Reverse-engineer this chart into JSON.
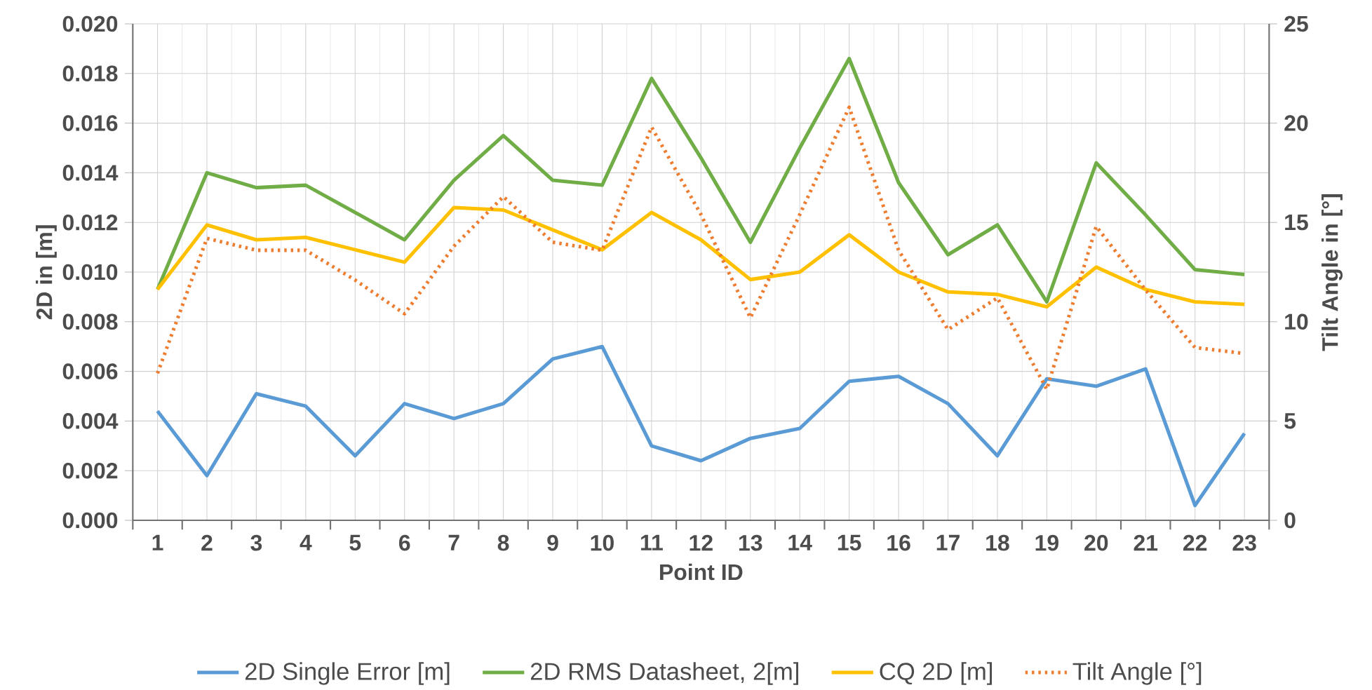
{
  "chart_data": {
    "type": "line",
    "xlabel": "Point ID",
    "ylabel": "2D in [m]",
    "y2label": "Tilt Angle in [°]",
    "categories": [
      "1",
      "2",
      "3",
      "4",
      "5",
      "6",
      "7",
      "8",
      "9",
      "10",
      "11",
      "12",
      "13",
      "14",
      "15",
      "16",
      "17",
      "18",
      "19",
      "20",
      "21",
      "22",
      "23"
    ],
    "series": [
      {
        "name": "2D Single Error [m]",
        "color": "#5b9bd5",
        "values": [
          0.0044,
          0.0018,
          0.0051,
          0.0046,
          0.0026,
          0.0047,
          0.0041,
          0.0047,
          0.0065,
          0.007,
          0.003,
          0.0024,
          0.0033,
          0.0037,
          0.0056,
          0.0058,
          0.0047,
          0.0026,
          0.0057,
          0.0054,
          0.0061,
          0.0006,
          0.0035
        ]
      },
      {
        "name": "2D RMS Datasheet, 2[m]",
        "color": "#70ad47",
        "values": [
          0.0093,
          0.014,
          0.0134,
          0.0135,
          0.0124,
          0.0113,
          0.0137,
          0.0155,
          0.0137,
          0.0135,
          0.0178,
          0.0146,
          0.0112,
          0.015,
          0.0186,
          0.0136,
          0.0107,
          0.0119,
          0.0088,
          0.0144,
          0.0123,
          0.0101,
          0.0099
        ]
      },
      {
        "name": "CQ 2D [m]",
        "color": "#ffc000",
        "values": [
          0.0093,
          0.0119,
          0.0113,
          0.0114,
          0.0109,
          0.0104,
          0.0126,
          0.0125,
          0.0117,
          0.0109,
          0.0124,
          0.0113,
          0.0097,
          0.01,
          0.0115,
          0.01,
          0.0092,
          0.0091,
          0.0086,
          0.0102,
          0.0093,
          0.0088,
          0.0087
        ]
      },
      {
        "name": "Tilt Angle [°]",
        "color": "#ed7d31",
        "axis": "y2",
        "line_style": "dotted",
        "values": [
          7.4,
          14.2,
          13.6,
          13.6,
          12.1,
          10.4,
          13.8,
          16.3,
          14.0,
          13.6,
          19.8,
          15.4,
          10.2,
          15.4,
          20.8,
          13.6,
          9.6,
          11.2,
          6.6,
          14.8,
          11.6,
          8.7,
          8.4
        ]
      }
    ],
    "ylim": [
      0,
      0.02
    ],
    "yticks": [
      {
        "value": 0,
        "label": "0.000"
      },
      {
        "value": 0.002,
        "label": "0.002"
      },
      {
        "value": 0.004,
        "label": "0.004"
      },
      {
        "value": 0.006,
        "label": "0.006"
      },
      {
        "value": 0.008,
        "label": "0.008"
      },
      {
        "value": 0.01,
        "label": "0.010"
      },
      {
        "value": 0.012,
        "label": "0.012"
      },
      {
        "value": 0.014,
        "label": "0.014"
      },
      {
        "value": 0.016,
        "label": "0.016"
      },
      {
        "value": 0.018,
        "label": "0.018"
      },
      {
        "value": 0.02,
        "label": "0.020"
      }
    ],
    "y2lim": [
      0,
      25
    ],
    "y2ticks": [
      0,
      5,
      10,
      15,
      20,
      25
    ],
    "grid": true,
    "legend": "bottom",
    "line_style": "solid"
  }
}
